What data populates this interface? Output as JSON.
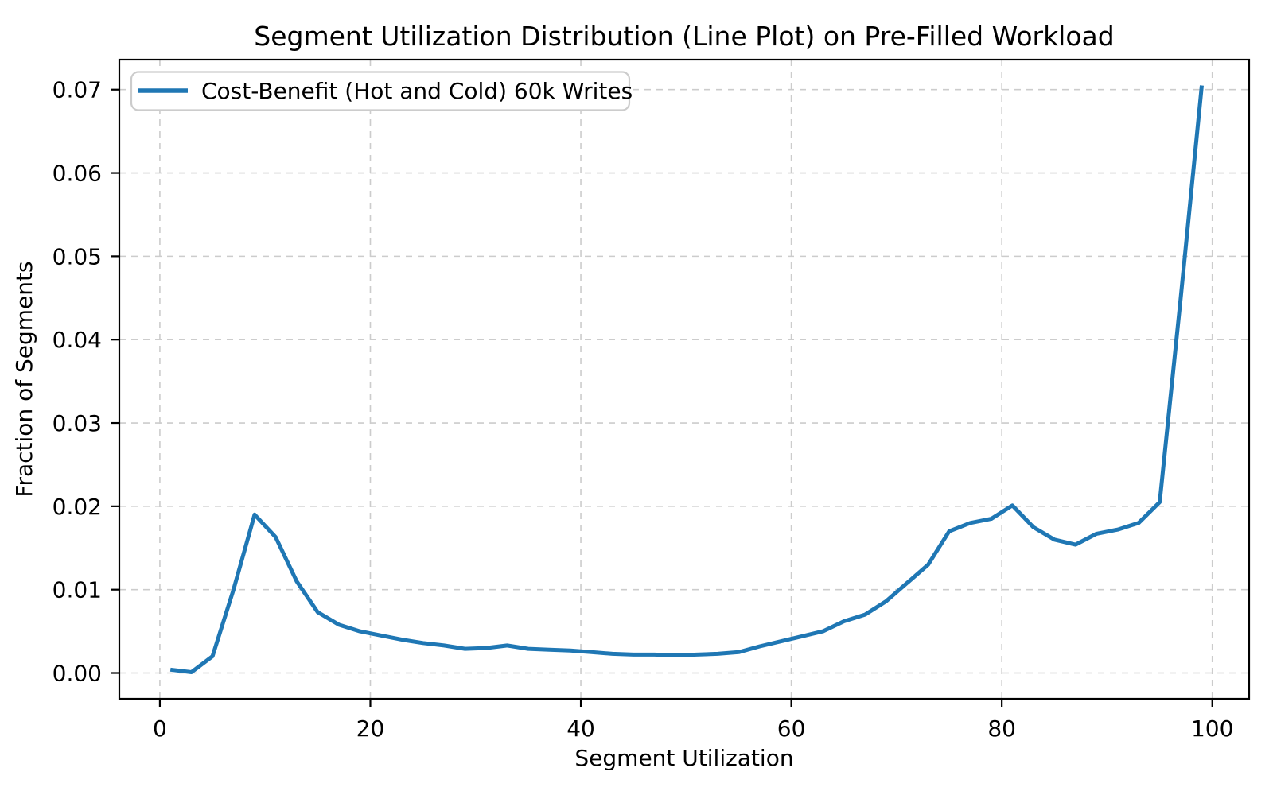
{
  "chart_data": {
    "type": "line",
    "title": "Segment Utilization Distribution (Line Plot) on Pre-Filled Workload",
    "xlabel": "Segment Utilization",
    "ylabel": "Fraction of Segments",
    "legend": {
      "position": "upper left",
      "entries": [
        {
          "label": "Cost-Benefit (Hot and Cold) 60k Writes",
          "color": "#1f77b4"
        }
      ]
    },
    "grid": true,
    "grid_style": "dashed",
    "xlim": [
      -3.85,
      103.5
    ],
    "ylim": [
      -0.0031,
      0.0736
    ],
    "x_ticks": [
      0,
      20,
      40,
      60,
      80,
      100
    ],
    "x_tick_labels": [
      "0",
      "20",
      "40",
      "60",
      "80",
      "100"
    ],
    "y_ticks": [
      0.0,
      0.01,
      0.02,
      0.03,
      0.04,
      0.05,
      0.06,
      0.07
    ],
    "y_tick_labels": [
      "0.00",
      "0.01",
      "0.02",
      "0.03",
      "0.04",
      "0.05",
      "0.06",
      "0.07"
    ],
    "series": [
      {
        "name": "Cost-Benefit (Hot and Cold) 60k Writes",
        "color": "#1f77b4",
        "x": [
          1,
          3,
          5,
          7,
          9,
          11,
          13,
          15,
          17,
          19,
          21,
          23,
          25,
          27,
          29,
          31,
          33,
          35,
          37,
          39,
          41,
          43,
          45,
          47,
          49,
          51,
          53,
          55,
          57,
          59,
          61,
          63,
          65,
          67,
          69,
          71,
          73,
          75,
          77,
          79,
          81,
          83,
          85,
          87,
          89,
          91,
          93,
          95,
          97,
          99
        ],
        "y": [
          0.0004,
          0.0001,
          0.002,
          0.01,
          0.019,
          0.0163,
          0.011,
          0.0073,
          0.0058,
          0.005,
          0.0045,
          0.004,
          0.0036,
          0.0033,
          0.0029,
          0.003,
          0.0033,
          0.0029,
          0.0028,
          0.0027,
          0.0025,
          0.0023,
          0.0022,
          0.0022,
          0.0021,
          0.0022,
          0.0023,
          0.0025,
          0.0032,
          0.0038,
          0.0044,
          0.005,
          0.0062,
          0.007,
          0.0086,
          0.0108,
          0.013,
          0.017,
          0.018,
          0.0185,
          0.0201,
          0.0175,
          0.016,
          0.0154,
          0.0167,
          0.0172,
          0.018,
          0.0205,
          0.045,
          0.0705
        ]
      }
    ]
  },
  "colors": {
    "line": "#1f77b4",
    "grid": "#cccccc",
    "spine": "#000000",
    "tick": "#000000",
    "background": "#ffffff",
    "legend_border": "#cccccc",
    "legend_fill": "#ffffff"
  }
}
